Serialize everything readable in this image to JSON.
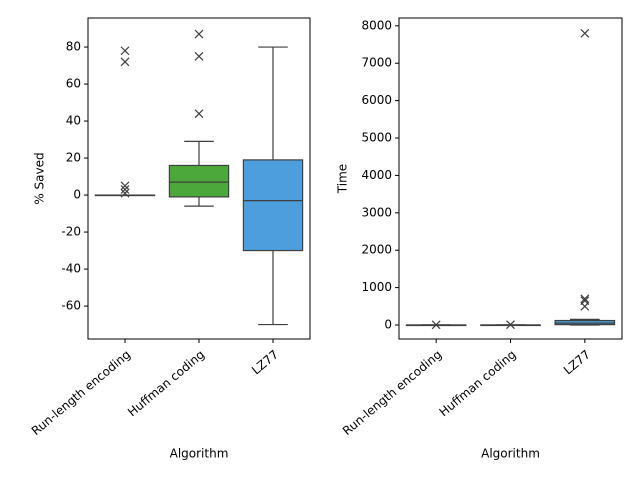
{
  "chart_data": [
    {
      "type": "box",
      "xlabel": "Algorithm",
      "ylabel": "% Saved",
      "categories": [
        "Run-length encoding",
        "Huffman coding",
        "LZ77"
      ],
      "colors": [
        "#3274a1",
        "#4ca83a",
        "#4c9fdc"
      ],
      "boxes": [
        {
          "whislo": 0,
          "q1": 0,
          "med": 0,
          "q3": 0,
          "whishi": 0,
          "fliers": [
            78,
            72,
            5,
            3,
            1
          ]
        },
        {
          "whislo": -6,
          "q1": -1,
          "med": 7,
          "q3": 16,
          "whishi": 29,
          "fliers": [
            87,
            75,
            44
          ]
        },
        {
          "whislo": -70,
          "q1": -30,
          "med": -3,
          "q3": 19,
          "whishi": 80,
          "fliers": []
        }
      ],
      "ylim": [
        -77.8,
        95.7
      ],
      "yticks": [
        -60,
        -40,
        -20,
        0,
        20,
        40,
        60,
        80
      ]
    },
    {
      "type": "box",
      "xlabel": "Algorithm",
      "ylabel": "Time",
      "categories": [
        "Run-length encoding",
        "Huffman coding",
        "LZ77"
      ],
      "colors": [
        "#3274a1",
        "#4ca83a",
        "#4c9fdc"
      ],
      "boxes": [
        {
          "whislo": 0,
          "q1": 0,
          "med": 0,
          "q3": 0,
          "whishi": 0,
          "fliers": [
            5
          ]
        },
        {
          "whislo": 0,
          "q1": 0,
          "med": 0,
          "q3": 1,
          "whishi": 2,
          "fliers": [
            10
          ]
        },
        {
          "whislo": 0,
          "q1": 10,
          "med": 50,
          "q3": 120,
          "whishi": 150,
          "fliers": [
            7800,
            700,
            650,
            500
          ]
        }
      ],
      "ylim": [
        -374,
        8209
      ],
      "yticks": [
        0,
        1000,
        2000,
        3000,
        4000,
        5000,
        6000,
        7000,
        8000
      ]
    }
  ]
}
